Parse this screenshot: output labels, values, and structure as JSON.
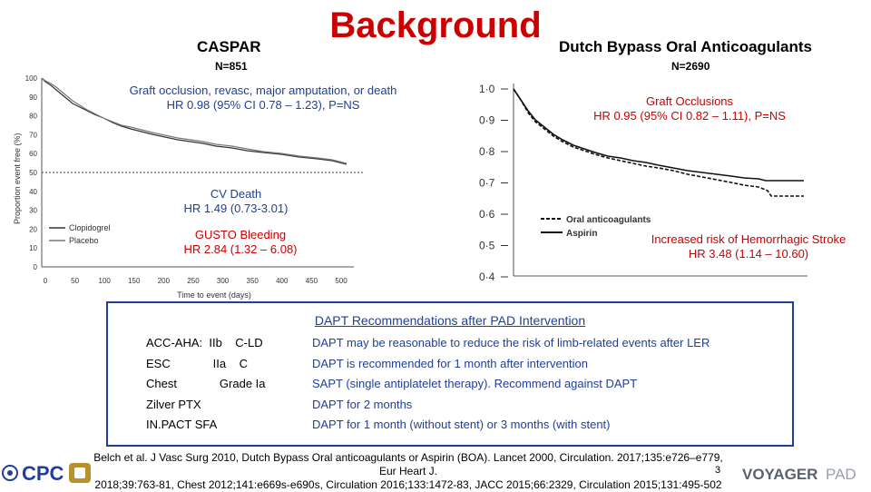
{
  "slide": {
    "title": "Background",
    "page_number": "3"
  },
  "caspar": {
    "title": "CASPAR",
    "n": "N=851",
    "endpoint": "Graft occlusion, revasc, major amputation, or death",
    "endpoint_hr": "HR 0.98 (95% CI 0.78 – 1.23), P=NS",
    "cv_death_title": "CV Death",
    "cv_death_hr": "HR 1.49 (0.73-3.01)",
    "gusto_title": "GUSTO Bleeding",
    "gusto_hr": "HR 2.84 (1.32 – 6.08)",
    "chart": {
      "ylabel": "Proportion event free (%)",
      "xlabel": "Time to event (days)",
      "y_ticks": [
        "100",
        "90",
        "80",
        "70",
        "60",
        "50",
        "40",
        "30",
        "20",
        "10",
        "0"
      ],
      "x_ticks": [
        "0",
        "50",
        "100",
        "150",
        "200",
        "250",
        "300",
        "350",
        "400",
        "450",
        "500"
      ],
      "legend": [
        "Clopidogrel",
        "Placebo"
      ]
    }
  },
  "dutch": {
    "title": "Dutch Bypass Oral Anticoagulants",
    "n": "N=2690",
    "endpoint": "Graft Occlusions",
    "endpoint_hr": "HR 0.95 (95%  CI 0.82 – 1.11), P=NS",
    "stroke_title": "Increased risk of Hemorrhagic Stroke",
    "stroke_hr": "HR 3.48 (1.14 – 10.60)",
    "chart": {
      "y_ticks": [
        "1·0",
        "0·9",
        "0·8",
        "0·7",
        "0·6",
        "0·5",
        "0·4"
      ],
      "legend": [
        "Oral anticoagulants",
        "Aspirin"
      ]
    }
  },
  "recommendations": {
    "title": "DAPT Recommendations after PAD Intervention",
    "rows": [
      {
        "label": "ACC-AHA:  IIb    C-LD",
        "text": "DAPT may be reasonable to reduce the risk of limb-related events after LER"
      },
      {
        "label": "ESC             IIa    C",
        "text": "DAPT is recommended for 1 month after intervention"
      },
      {
        "label": "Chest             Grade Ia",
        "text": "SAPT (single antiplatelet therapy).  Recommend against DAPT"
      },
      {
        "label": "Zilver PTX",
        "text": "DAPT for 2 months"
      },
      {
        "label": "IN.PACT SFA",
        "text": "DAPT for 1 month (without stent) or 3 months (with stent)"
      }
    ]
  },
  "footer": {
    "line1": "Belch et al. J Vasc Surg 2010, Dutch Bypass Oral anticoagulants or Aspirin (BOA). Lancet 2000, Circulation. 2017;135:e726–e779, Eur Heart J.",
    "line2": "2018;39:763-81, Chest 2012;141:e669s-e690s, Circulation 2016;133:1472-83, JACC 2015;66:2329, Circulation 2015;131:495-502",
    "logo_left": "CPC",
    "logo_right_a": "VOYAGER",
    "logo_right_b": "PAD"
  },
  "colors": {
    "title_red": "#cc0000",
    "text_blue": "#1f3f9a"
  }
}
